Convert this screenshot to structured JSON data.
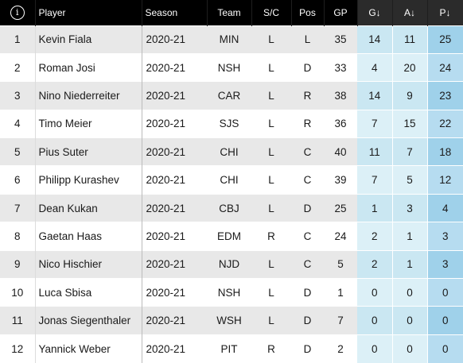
{
  "table": {
    "info_icon": "info-icon",
    "info_glyph": "i",
    "headers": {
      "player": "Player",
      "season": "Season",
      "team": "Team",
      "sc": "S/C",
      "pos": "Pos",
      "gp": "GP",
      "g": "G↓",
      "a": "A↓",
      "p": "P↓"
    },
    "rows": [
      {
        "rank": "1",
        "player": "Kevin Fiala",
        "season": "2020-21",
        "team": "MIN",
        "sc": "L",
        "pos": "L",
        "gp": "35",
        "g": "14",
        "a": "11",
        "p": "25"
      },
      {
        "rank": "2",
        "player": "Roman Josi",
        "season": "2020-21",
        "team": "NSH",
        "sc": "L",
        "pos": "D",
        "gp": "33",
        "g": "4",
        "a": "20",
        "p": "24"
      },
      {
        "rank": "3",
        "player": "Nino Niederreiter",
        "season": "2020-21",
        "team": "CAR",
        "sc": "L",
        "pos": "R",
        "gp": "38",
        "g": "14",
        "a": "9",
        "p": "23"
      },
      {
        "rank": "4",
        "player": "Timo Meier",
        "season": "2020-21",
        "team": "SJS",
        "sc": "L",
        "pos": "R",
        "gp": "36",
        "g": "7",
        "a": "15",
        "p": "22"
      },
      {
        "rank": "5",
        "player": "Pius Suter",
        "season": "2020-21",
        "team": "CHI",
        "sc": "L",
        "pos": "C",
        "gp": "40",
        "g": "11",
        "a": "7",
        "p": "18"
      },
      {
        "rank": "6",
        "player": "Philipp Kurashev",
        "season": "2020-21",
        "team": "CHI",
        "sc": "L",
        "pos": "C",
        "gp": "39",
        "g": "7",
        "a": "5",
        "p": "12"
      },
      {
        "rank": "7",
        "player": "Dean Kukan",
        "season": "2020-21",
        "team": "CBJ",
        "sc": "L",
        "pos": "D",
        "gp": "25",
        "g": "1",
        "a": "3",
        "p": "4"
      },
      {
        "rank": "8",
        "player": "Gaetan Haas",
        "season": "2020-21",
        "team": "EDM",
        "sc": "R",
        "pos": "C",
        "gp": "24",
        "g": "2",
        "a": "1",
        "p": "3"
      },
      {
        "rank": "9",
        "player": "Nico Hischier",
        "season": "2020-21",
        "team": "NJD",
        "sc": "L",
        "pos": "C",
        "gp": "5",
        "g": "2",
        "a": "1",
        "p": "3"
      },
      {
        "rank": "10",
        "player": "Luca Sbisa",
        "season": "2020-21",
        "team": "NSH",
        "sc": "L",
        "pos": "D",
        "gp": "1",
        "g": "0",
        "a": "0",
        "p": "0"
      },
      {
        "rank": "11",
        "player": "Jonas Siegenthaler",
        "season": "2020-21",
        "team": "WSH",
        "sc": "L",
        "pos": "D",
        "gp": "7",
        "g": "0",
        "a": "0",
        "p": "0"
      },
      {
        "rank": "12",
        "player": "Yannick Weber",
        "season": "2020-21",
        "team": "PIT",
        "sc": "R",
        "pos": "D",
        "gp": "2",
        "g": "0",
        "a": "0",
        "p": "0"
      }
    ]
  },
  "colors": {
    "header_bg": "#000000",
    "header_sorted_bg": "#2b2b2b",
    "row_odd_bg": "#e8e8e8",
    "row_even_bg": "#ffffff",
    "ga_odd_bg": "#cae7f2",
    "ga_even_bg": "#dcf0f7",
    "points_odd_bg": "#9fd1ea",
    "points_even_bg": "#b6dcf0"
  }
}
